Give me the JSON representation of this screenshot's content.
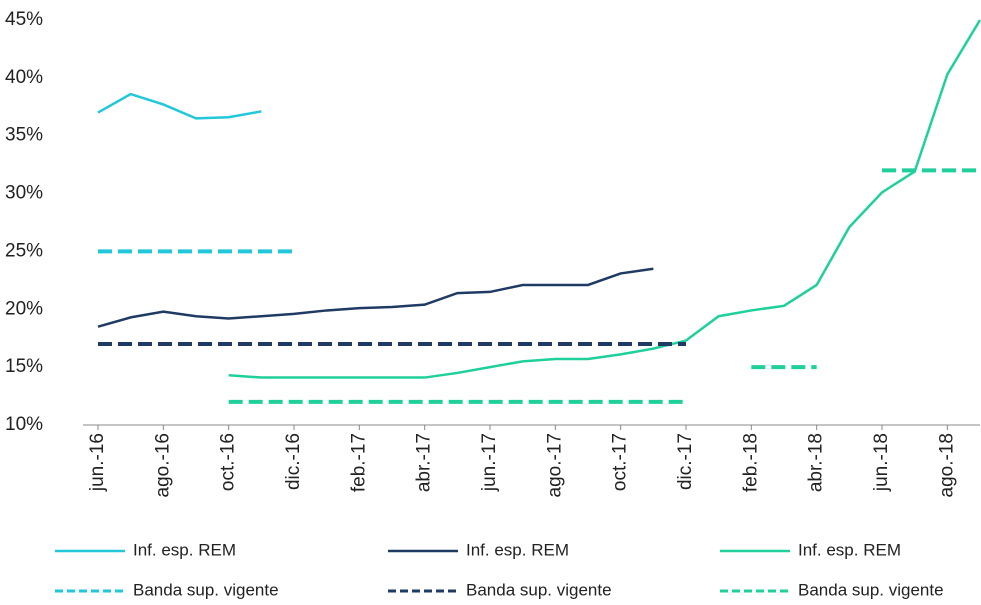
{
  "chart_data": {
    "type": "line",
    "categories": [
      "jun.-16",
      null,
      "ago.-16",
      null,
      "oct.-16",
      null,
      "dic.-16",
      null,
      "feb.-17",
      null,
      "abr.-17",
      null,
      "jun.-17",
      null,
      "ago.-17",
      null,
      "oct.-17",
      null,
      "dic.-17",
      null,
      "feb.-18",
      null,
      "abr.-18",
      null,
      "jun.-18",
      null,
      "ago.-18",
      null
    ],
    "ylim": [
      10,
      45
    ],
    "yticks": [
      {
        "value": 10,
        "label": "10%"
      },
      {
        "value": 15,
        "label": "15%"
      },
      {
        "value": 20,
        "label": "20%"
      },
      {
        "value": 25,
        "label": "25%"
      },
      {
        "value": 30,
        "label": "30%"
      },
      {
        "value": 35,
        "label": "35%"
      },
      {
        "value": 40,
        "label": "40%"
      },
      {
        "value": 45,
        "label": "45%"
      }
    ],
    "series": [
      {
        "name": "Inf. esp. REM",
        "color": "#22c7d9",
        "dashed": false,
        "values": [
          37,
          38.6,
          37.7,
          36.5,
          36.6,
          37.1,
          null,
          null,
          null,
          null,
          null,
          null,
          null,
          null,
          null,
          null,
          null,
          null,
          null,
          null,
          null,
          null,
          null,
          null,
          null,
          null,
          null,
          null
        ]
      },
      {
        "name": "Inf. esp. REM",
        "color": "#1f3b63",
        "dashed": false,
        "values": [
          18.5,
          19.3,
          19.8,
          19.4,
          19.2,
          19.4,
          19.6,
          19.9,
          20.1,
          20.2,
          20.4,
          21.4,
          21.5,
          22.1,
          22.1,
          22.1,
          23.1,
          23.5,
          null,
          null,
          null,
          null,
          null,
          null,
          null,
          null,
          null,
          null
        ]
      },
      {
        "name": "Inf. esp. REM",
        "color": "#1fcf9c",
        "dashed": false,
        "values": [
          null,
          null,
          null,
          null,
          14.3,
          14.1,
          14.1,
          14.1,
          14.1,
          14.1,
          14.1,
          14.5,
          15.0,
          15.5,
          15.7,
          15.7,
          16.1,
          16.6,
          17.3,
          19.4,
          19.9,
          20.3,
          22.1,
          27.1,
          30.1,
          31.9,
          40.3,
          45
        ]
      },
      {
        "name": "Banda sup. vigente",
        "color": "#22c7d9",
        "dashed": true,
        "values": [
          25,
          25,
          25,
          25,
          25,
          25,
          25,
          null,
          null,
          null,
          null,
          null,
          null,
          null,
          null,
          null,
          null,
          null,
          null,
          null,
          null,
          null,
          null,
          null,
          null,
          null,
          null,
          null
        ]
      },
      {
        "name": "Banda sup. vigente",
        "color": "#1f3b63",
        "dashed": true,
        "values": [
          17,
          17,
          17,
          17,
          17,
          17,
          17,
          17,
          17,
          17,
          17,
          17,
          17,
          17,
          17,
          17,
          17,
          17,
          17,
          null,
          null,
          null,
          null,
          null,
          null,
          null,
          null,
          null
        ]
      },
      {
        "name": "Banda sup. vigente",
        "color": "#1fcf9c",
        "dashed": true,
        "values": [
          null,
          null,
          null,
          null,
          12,
          12,
          12,
          12,
          12,
          12,
          12,
          12,
          12,
          12,
          12,
          12,
          12,
          12,
          12,
          null,
          15,
          15,
          15,
          null,
          32,
          32,
          32,
          32
        ]
      }
    ]
  }
}
